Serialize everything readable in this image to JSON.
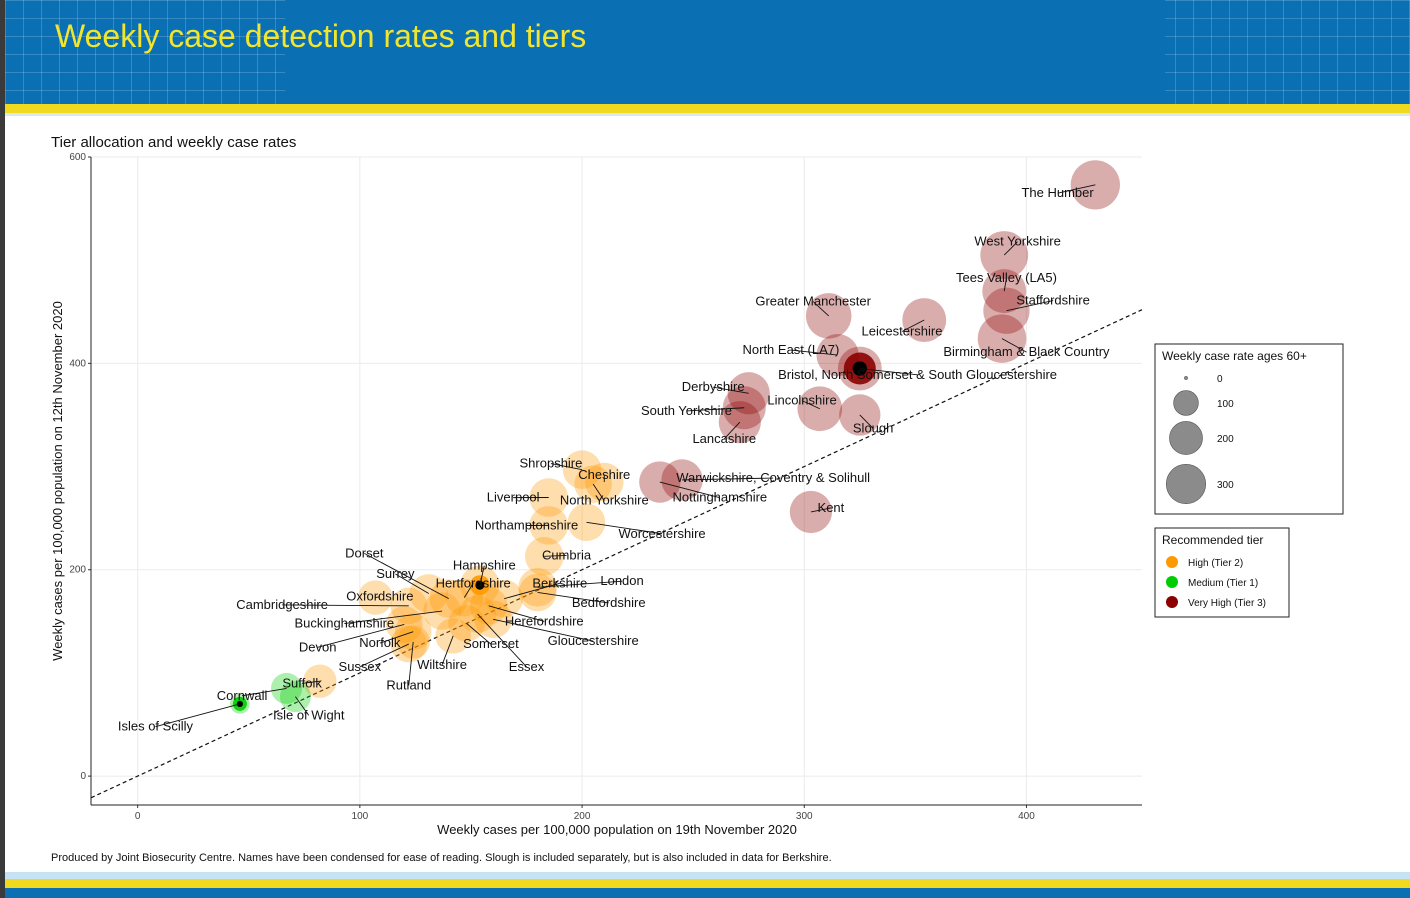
{
  "page": {
    "title": "Weekly case detection rates and tiers"
  },
  "footnote": "Produced by Joint Biosecurity Centre. Names have been condensed for ease of reading. Slough is included separately, but is also included in data for Berkshire.",
  "colors": {
    "banner": "#0a6fb3",
    "title": "#f2e52e",
    "stripe": "#f1d91f",
    "tier2": "#ff9900",
    "tier1": "#00cc00",
    "tier3": "#8b0000"
  },
  "chart_data": {
    "type": "scatter",
    "title": "Tier allocation and weekly case rates",
    "xlabel": "Weekly cases per 100,000 population on 19th November 2020",
    "ylabel": "Weekly cases per 100,000 population on 12th November 2020",
    "xlim": [
      -21,
      452
    ],
    "ylim": [
      -28,
      600
    ],
    "xticks": [
      0,
      100,
      200,
      300,
      400
    ],
    "yticks": [
      0,
      200,
      400,
      600
    ],
    "grid": true,
    "reference_line": {
      "style": "dashed",
      "slope": 1.0,
      "intercept": 0
    },
    "size_legend": {
      "title": "Weekly case rate ages 60+",
      "values": [
        0,
        100,
        200,
        300
      ]
    },
    "tier_legend": {
      "title": "Recommended tier",
      "entries": [
        {
          "key": "tier2",
          "label": "High (Tier 2)",
          "color": "#ff9900"
        },
        {
          "key": "tier1",
          "label": "Medium (Tier 1)",
          "color": "#00cc00"
        },
        {
          "key": "tier3",
          "label": "Very High (Tier 3)",
          "color": "#8b0000"
        }
      ]
    },
    "points": [
      {
        "name": "The Humber",
        "x": 431,
        "y": 573,
        "size": 300,
        "tier": "tier3"
      },
      {
        "name": "West Yorkshire",
        "x": 390,
        "y": 505,
        "size": 280,
        "tier": "tier3"
      },
      {
        "name": "Tees Valley (LA5)",
        "x": 390,
        "y": 470,
        "size": 230,
        "tier": "tier3"
      },
      {
        "name": "Staffordshire",
        "x": 391,
        "y": 451,
        "size": 260,
        "tier": "tier3"
      },
      {
        "name": "Birmingham & Black Country",
        "x": 389,
        "y": 424,
        "size": 290,
        "tier": "tier3"
      },
      {
        "name": "Greater Manchester",
        "x": 311,
        "y": 446,
        "size": 250,
        "tier": "tier3"
      },
      {
        "name": "Leicestershire",
        "x": 354,
        "y": 442,
        "size": 230,
        "tier": "tier3"
      },
      {
        "name": "North East (LA7)",
        "x": 315,
        "y": 408,
        "size": 210,
        "tier": "tier3"
      },
      {
        "name": "Bristol, North Somerset & South Gloucestershire",
        "x": 325,
        "y": 395,
        "size": 230,
        "tier": "tier3",
        "mark": true
      },
      {
        "name": "Derbyshire",
        "x": 275,
        "y": 371,
        "size": 210,
        "tier": "tier3"
      },
      {
        "name": "Lincolnshire",
        "x": 307,
        "y": 356,
        "size": 240,
        "tier": "tier3"
      },
      {
        "name": "South Yorkshire",
        "x": 273,
        "y": 357,
        "size": 220,
        "tier": "tier3"
      },
      {
        "name": "Lancashire",
        "x": 271,
        "y": 343,
        "size": 210,
        "tier": "tier3"
      },
      {
        "name": "Slough",
        "x": 325,
        "y": 350,
        "size": 200,
        "tier": "tier3"
      },
      {
        "name": "Warwickshire, Coventry & Solihull",
        "x": 245,
        "y": 287,
        "size": 200,
        "tier": "tier3"
      },
      {
        "name": "Nottinghamshire",
        "x": 235,
        "y": 285,
        "size": 200,
        "tier": "tier3"
      },
      {
        "name": "Kent",
        "x": 303,
        "y": 256,
        "size": 210,
        "tier": "tier3"
      },
      {
        "name": "Shropshire",
        "x": 200,
        "y": 297,
        "size": 170,
        "tier": "tier2"
      },
      {
        "name": "Cheshire",
        "x": 210,
        "y": 285,
        "size": 170,
        "tier": "tier2"
      },
      {
        "name": "North Yorkshire",
        "x": 205,
        "y": 283,
        "size": 160,
        "tier": "tier2"
      },
      {
        "name": "Liverpool",
        "x": 185,
        "y": 270,
        "size": 170,
        "tier": "tier2"
      },
      {
        "name": "Northamptonshire",
        "x": 185,
        "y": 243,
        "size": 170,
        "tier": "tier2"
      },
      {
        "name": "Worcestershire",
        "x": 202,
        "y": 246,
        "size": 160,
        "tier": "tier2"
      },
      {
        "name": "Cumbria",
        "x": 183,
        "y": 213,
        "size": 170,
        "tier": "tier2"
      },
      {
        "name": "Hampshire",
        "x": 154,
        "y": 185,
        "size": 180,
        "tier": "tier2",
        "mark": true
      },
      {
        "name": "Dorset",
        "x": 140,
        "y": 172,
        "size": 170,
        "tier": "tier2"
      },
      {
        "name": "Surrey",
        "x": 131,
        "y": 177,
        "size": 170,
        "tier": "tier2"
      },
      {
        "name": "Hertfordshire",
        "x": 147,
        "y": 173,
        "size": 160,
        "tier": "tier2"
      },
      {
        "name": "Berkshire",
        "x": 165,
        "y": 172,
        "size": 160,
        "tier": "tier2"
      },
      {
        "name": "London",
        "x": 180,
        "y": 183,
        "size": 170,
        "tier": "tier2"
      },
      {
        "name": "Bedfordshire",
        "x": 180,
        "y": 178,
        "size": 160,
        "tier": "tier2"
      },
      {
        "name": "Oxfordshire",
        "x": 107,
        "y": 173,
        "size": 130,
        "tier": "tier2"
      },
      {
        "name": "Cambridgeshire",
        "x": 122,
        "y": 165,
        "size": 150,
        "tier": "tier2"
      },
      {
        "name": "Buckinghamshire",
        "x": 137,
        "y": 160,
        "size": 160,
        "tier": "tier2"
      },
      {
        "name": "Herefordshire",
        "x": 158,
        "y": 165,
        "size": 160,
        "tier": "tier2"
      },
      {
        "name": "Gloucestershire",
        "x": 160,
        "y": 152,
        "size": 160,
        "tier": "tier2"
      },
      {
        "name": "Somerset",
        "x": 148,
        "y": 148,
        "size": 150,
        "tier": "tier2"
      },
      {
        "name": "Essex",
        "x": 153,
        "y": 157,
        "size": 160,
        "tier": "tier2"
      },
      {
        "name": "Norfolk",
        "x": 124,
        "y": 140,
        "size": 150,
        "tier": "tier2"
      },
      {
        "name": "Devon",
        "x": 120,
        "y": 147,
        "size": 150,
        "tier": "tier2"
      },
      {
        "name": "Wiltshire",
        "x": 142,
        "y": 136,
        "size": 140,
        "tier": "tier2"
      },
      {
        "name": "Sussex",
        "x": 122,
        "y": 128,
        "size": 150,
        "tier": "tier2"
      },
      {
        "name": "Rutland",
        "x": 124,
        "y": 130,
        "size": 120,
        "tier": "tier2"
      },
      {
        "name": "Suffolk",
        "x": 82,
        "y": 92,
        "size": 120,
        "tier": "tier2"
      },
      {
        "name": "Cornwall",
        "x": 67,
        "y": 85,
        "size": 100,
        "tier": "tier1"
      },
      {
        "name": "Isle of Wight",
        "x": 71,
        "y": 77,
        "size": 100,
        "tier": "tier1"
      },
      {
        "name": "Isles of Scilly",
        "x": 46,
        "y": 70,
        "size": 30,
        "tier": "tier1",
        "mark": true
      }
    ],
    "labels": [
      {
        "name": "The Humber",
        "lx": 414,
        "ly": 561,
        "anchor": "middle"
      },
      {
        "name": "West Yorkshire",
        "lx": 396,
        "ly": 514,
        "anchor": "middle"
      },
      {
        "name": "Tees Valley (LA5)",
        "lx": 391,
        "ly": 479,
        "anchor": "middle"
      },
      {
        "name": "Staffordshire",
        "lx": 412,
        "ly": 457,
        "anchor": "middle"
      },
      {
        "name": "Greater Manchester",
        "lx": 304,
        "ly": 456,
        "anchor": "middle"
      },
      {
        "name": "Leicestershire",
        "lx": 344,
        "ly": 427,
        "anchor": "middle"
      },
      {
        "name": "Birmingham & Black Country",
        "lx": 400,
        "ly": 407,
        "anchor": "middle"
      },
      {
        "name": "North East (LA7)",
        "lx": 294,
        "ly": 409,
        "anchor": "middle"
      },
      {
        "name": "Bristol, North Somerset & South Gloucestershire",
        "lx": 351,
        "ly": 385,
        "anchor": "middle"
      },
      {
        "name": "Derbyshire",
        "lx": 259,
        "ly": 373,
        "anchor": "middle"
      },
      {
        "name": "Lincolnshire",
        "lx": 299,
        "ly": 360,
        "anchor": "middle"
      },
      {
        "name": "South Yorkshire",
        "lx": 247,
        "ly": 350,
        "anchor": "middle"
      },
      {
        "name": "Lancashire",
        "lx": 264,
        "ly": 323,
        "anchor": "middle"
      },
      {
        "name": "Slough",
        "lx": 331,
        "ly": 333,
        "anchor": "middle"
      },
      {
        "name": "Shropshire",
        "lx": 186,
        "ly": 299,
        "anchor": "middle"
      },
      {
        "name": "Cheshire",
        "lx": 210,
        "ly": 288,
        "anchor": "middle"
      },
      {
        "name": "Warwickshire, Coventry & Solihull",
        "lx": 286,
        "ly": 285,
        "anchor": "middle"
      },
      {
        "name": "Liverpool",
        "lx": 169,
        "ly": 266,
        "anchor": "middle"
      },
      {
        "name": "North Yorkshire",
        "lx": 210,
        "ly": 263,
        "anchor": "middle"
      },
      {
        "name": "Nottinghamshire",
        "lx": 262,
        "ly": 266,
        "anchor": "middle"
      },
      {
        "name": "Kent",
        "lx": 312,
        "ly": 256,
        "anchor": "middle"
      },
      {
        "name": "Northamptonshire",
        "lx": 175,
        "ly": 239,
        "anchor": "middle"
      },
      {
        "name": "Worcestershire",
        "lx": 236,
        "ly": 231,
        "anchor": "middle"
      },
      {
        "name": "Cumbria",
        "lx": 193,
        "ly": 210,
        "anchor": "middle"
      },
      {
        "name": "Dorset",
        "lx": 102,
        "ly": 212,
        "anchor": "middle"
      },
      {
        "name": "Hampshire",
        "lx": 156,
        "ly": 200,
        "anchor": "middle"
      },
      {
        "name": "Surrey",
        "lx": 116,
        "ly": 192,
        "anchor": "middle"
      },
      {
        "name": "Hertfordshire",
        "lx": 151,
        "ly": 183,
        "anchor": "middle"
      },
      {
        "name": "Berkshire",
        "lx": 190,
        "ly": 183,
        "anchor": "middle"
      },
      {
        "name": "London",
        "lx": 218,
        "ly": 185,
        "anchor": "middle"
      },
      {
        "name": "Oxfordshire",
        "lx": 109,
        "ly": 170,
        "anchor": "middle"
      },
      {
        "name": "Bedfordshire",
        "lx": 212,
        "ly": 164,
        "anchor": "middle"
      },
      {
        "name": "Cambridgeshire",
        "lx": 65,
        "ly": 162,
        "anchor": "middle"
      },
      {
        "name": "Herefordshire",
        "lx": 183,
        "ly": 146,
        "anchor": "middle"
      },
      {
        "name": "Buckinghamshire",
        "lx": 93,
        "ly": 144,
        "anchor": "middle"
      },
      {
        "name": "Gloucestershire",
        "lx": 205,
        "ly": 127,
        "anchor": "middle"
      },
      {
        "name": "Norfolk",
        "lx": 109,
        "ly": 125,
        "anchor": "middle"
      },
      {
        "name": "Somerset",
        "lx": 159,
        "ly": 124,
        "anchor": "middle"
      },
      {
        "name": "Devon",
        "lx": 81,
        "ly": 121,
        "anchor": "middle"
      },
      {
        "name": "Wiltshire",
        "lx": 137,
        "ly": 104,
        "anchor": "middle"
      },
      {
        "name": "Essex",
        "lx": 175,
        "ly": 102,
        "anchor": "middle"
      },
      {
        "name": "Sussex",
        "lx": 100,
        "ly": 102,
        "anchor": "middle"
      },
      {
        "name": "Rutland",
        "lx": 122,
        "ly": 84,
        "anchor": "middle"
      },
      {
        "name": "Suffolk",
        "lx": 74,
        "ly": 86,
        "anchor": "middle"
      },
      {
        "name": "Cornwall",
        "lx": 47,
        "ly": 74,
        "anchor": "middle"
      },
      {
        "name": "Isle of Wight",
        "lx": 77,
        "ly": 55,
        "anchor": "middle"
      },
      {
        "name": "Isles of Scilly",
        "lx": 8,
        "ly": 44,
        "anchor": "middle"
      }
    ]
  }
}
